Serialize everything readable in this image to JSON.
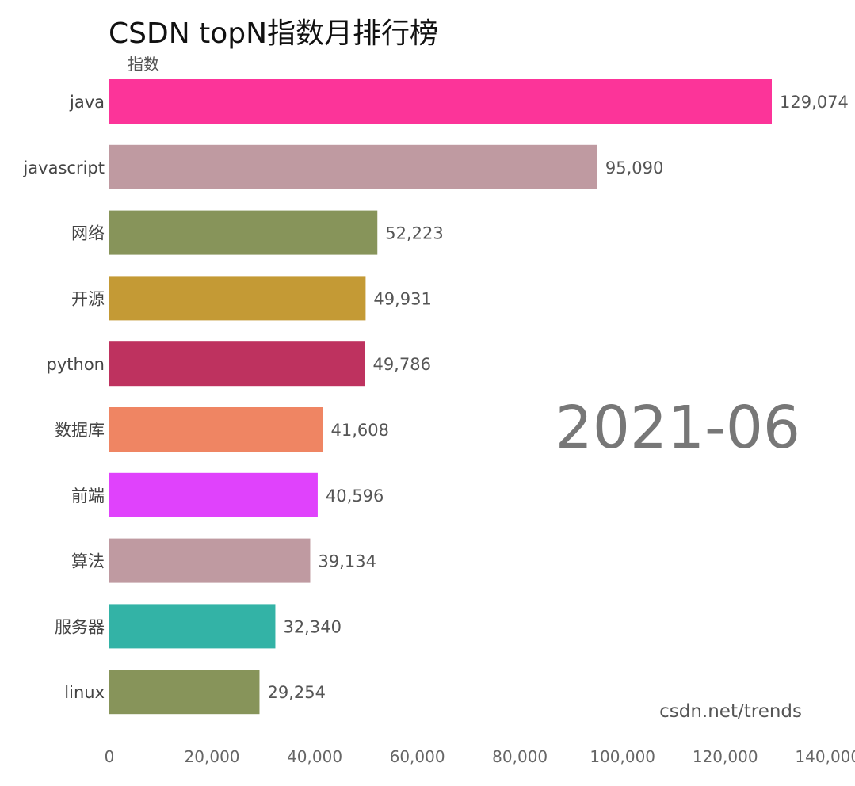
{
  "chart_data": {
    "type": "bar",
    "orientation": "horizontal",
    "title": "CSDN topN指数月排行榜",
    "ylabel": "指数",
    "categories": [
      "java",
      "javascript",
      "网络",
      "开源",
      "python",
      "数据库",
      "前端",
      "算法",
      "服务器",
      "linux"
    ],
    "values": [
      129074,
      95090,
      52223,
      49931,
      49786,
      41608,
      40596,
      39134,
      32340,
      29254
    ],
    "value_labels": [
      "129,074",
      "95,090",
      "52,223",
      "49,931",
      "49,786",
      "41,608",
      "40,596",
      "39,134",
      "32,340",
      "29,254"
    ],
    "colors": [
      "#fc3499",
      "#bf9aa1",
      "#87945a",
      "#c49a35",
      "#be325f",
      "#ef8563",
      "#e042fc",
      "#bf9aa1",
      "#33b3a6",
      "#87945a"
    ],
    "xlim": [
      0,
      140000
    ],
    "xticks": [
      0,
      20000,
      40000,
      60000,
      80000,
      100000,
      120000,
      140000
    ],
    "xtick_labels": [
      "0",
      "20,000",
      "40,000",
      "60,000",
      "80,000",
      "100,000",
      "120,000",
      "140,000"
    ],
    "grid": false,
    "period": "2021-06",
    "source": "csdn.net/trends"
  }
}
